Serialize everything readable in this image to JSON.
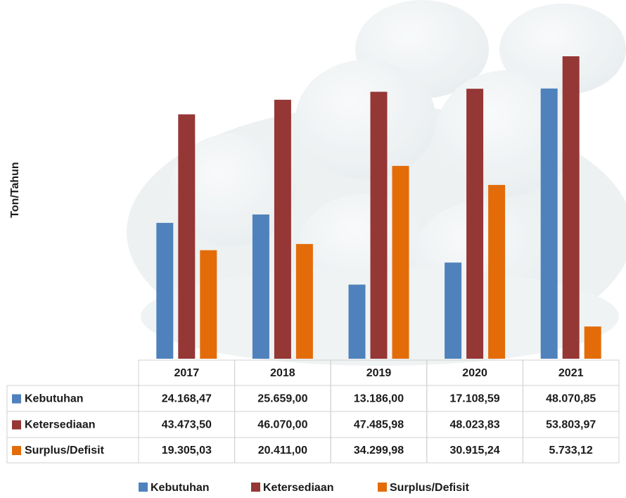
{
  "chart_data": {
    "type": "bar",
    "y_label": "Ton/Tahun",
    "categories": [
      "2017",
      "2018",
      "2019",
      "2020",
      "2021"
    ],
    "series": [
      {
        "name": "Kebutuhan",
        "color": "#4f81bd",
        "values": [
          24168.47,
          25659.0,
          13186.0,
          17108.59,
          48070.85
        ],
        "value_labels": [
          "24.168,47",
          "25.659,00",
          "13.186,00",
          "17.108,59",
          "48.070,85"
        ]
      },
      {
        "name": "Ketersediaan",
        "color": "#953735",
        "values": [
          43473.5,
          46070.0,
          47485.98,
          48023.83,
          53803.97
        ],
        "value_labels": [
          "43.473,50",
          "46.070,00",
          "47.485,98",
          "48.023,83",
          "53.803,97"
        ]
      },
      {
        "name": "Surplus/Defisit",
        "color": "#e36c09",
        "values": [
          19305.03,
          20411.0,
          34299.98,
          30915.24,
          5733.12
        ],
        "value_labels": [
          "19.305,03",
          "20.411,00",
          "34.299,98",
          "30.915,24",
          "5.733,12"
        ]
      }
    ]
  }
}
